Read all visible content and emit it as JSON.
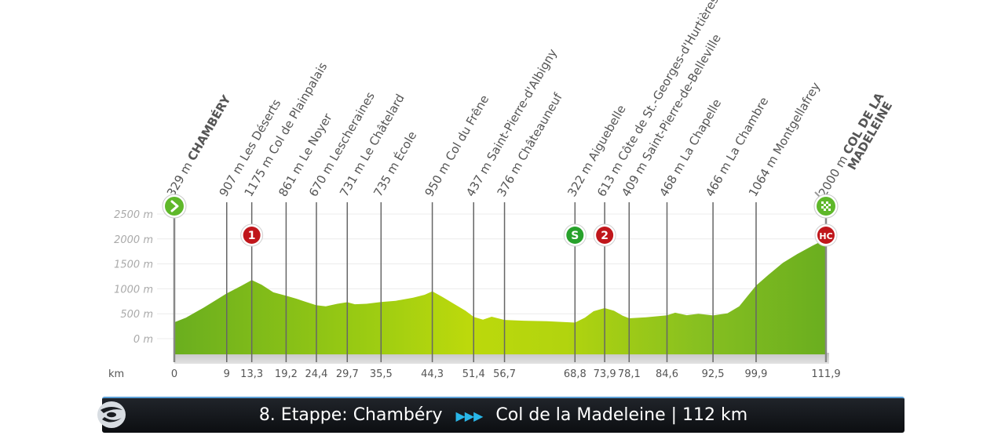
{
  "stage": {
    "number_label": "8. Etappe:",
    "start": "Chambéry",
    "arrows": "▶▶▶",
    "finish": "Col de la Madeleine",
    "distance": "| 112 km"
  },
  "chart_data": {
    "type": "area",
    "xlabel": "km",
    "ylabel": "",
    "xlim": [
      0,
      111.9
    ],
    "ylim": [
      0,
      2500
    ],
    "y_ticks": [
      "2500 m",
      "2000 m",
      "1500 m",
      "1000 m",
      "500 m",
      "0 m"
    ],
    "x_ticks": [
      "0",
      "9",
      "13,3",
      "19,2",
      "24,4",
      "29,7",
      "35,5",
      "44,3",
      "51,4",
      "56,7",
      "68,8",
      "73,9",
      "78,1",
      "84,6",
      "92,5",
      "99,9",
      "111,9"
    ],
    "colors": {
      "fill_start": "#6aae1f",
      "fill_mid": "#b4d60c",
      "grid": "#555555"
    },
    "profile": [
      [
        0,
        329
      ],
      [
        2,
        420
      ],
      [
        5,
        620
      ],
      [
        9,
        907
      ],
      [
        11.5,
        1060
      ],
      [
        13.3,
        1175
      ],
      [
        15,
        1080
      ],
      [
        17,
        930
      ],
      [
        19.2,
        861
      ],
      [
        21,
        800
      ],
      [
        22.5,
        740
      ],
      [
        24.4,
        670
      ],
      [
        26,
        650
      ],
      [
        28,
        700
      ],
      [
        29.7,
        731
      ],
      [
        31,
        690
      ],
      [
        33,
        700
      ],
      [
        35.5,
        735
      ],
      [
        38,
        760
      ],
      [
        41,
        820
      ],
      [
        43,
        880
      ],
      [
        44.3,
        950
      ],
      [
        46,
        840
      ],
      [
        48,
        700
      ],
      [
        50,
        560
      ],
      [
        51.4,
        437
      ],
      [
        53,
        380
      ],
      [
        54.5,
        440
      ],
      [
        56.7,
        376
      ],
      [
        60,
        360
      ],
      [
        64,
        350
      ],
      [
        68.8,
        322
      ],
      [
        70.5,
        420
      ],
      [
        72,
        550
      ],
      [
        73.9,
        613
      ],
      [
        75.5,
        560
      ],
      [
        77,
        460
      ],
      [
        78.1,
        409
      ],
      [
        81,
        430
      ],
      [
        84.6,
        468
      ],
      [
        86,
        520
      ],
      [
        88,
        470
      ],
      [
        90,
        500
      ],
      [
        92.5,
        466
      ],
      [
        95,
        510
      ],
      [
        97,
        650
      ],
      [
        99.9,
        1064
      ],
      [
        102,
        1280
      ],
      [
        104.5,
        1520
      ],
      [
        107,
        1700
      ],
      [
        109.5,
        1860
      ],
      [
        111.9,
        2000
      ]
    ],
    "waypoints": [
      {
        "km": 0,
        "alt": "329 m",
        "name": "CHAMBÉRY",
        "emphasis": true
      },
      {
        "km": 9,
        "alt": "907 m",
        "name": "Les Déserts"
      },
      {
        "km": 13.3,
        "alt": "1175 m",
        "name": "Col de Plainpalais"
      },
      {
        "km": 19.2,
        "alt": "861 m",
        "name": "Le Noyer"
      },
      {
        "km": 24.4,
        "alt": "670 m",
        "name": "Lescheraines"
      },
      {
        "km": 29.7,
        "alt": "731 m",
        "name": "Le Châtelard"
      },
      {
        "km": 35.5,
        "alt": "735 m",
        "name": "École"
      },
      {
        "km": 44.3,
        "alt": "950 m",
        "name": "Col du Frêne"
      },
      {
        "km": 51.4,
        "alt": "437 m",
        "name": "Saint-Pierre-d'Albigny"
      },
      {
        "km": 56.7,
        "alt": "376 m",
        "name": "Châteauneuf"
      },
      {
        "km": 68.8,
        "alt": "322 m",
        "name": "Aiguebelle"
      },
      {
        "km": 73.9,
        "alt": "613 m",
        "name": "Côte de St.-Georges-d'Hurtières"
      },
      {
        "km": 78.1,
        "alt": "409 m",
        "name": "Saint-Pierre-de-Belleville"
      },
      {
        "km": 84.6,
        "alt": "468 m",
        "name": "La Chapelle"
      },
      {
        "km": 92.5,
        "alt": "466 m",
        "name": "La Chambre"
      },
      {
        "km": 99.9,
        "alt": "1064 m",
        "name": "Montgellafrey"
      },
      {
        "km": 111.9,
        "alt": "2000 m",
        "name": "COL DE LA|MADELEINE",
        "emphasis": true
      }
    ],
    "badges": [
      {
        "km": 13.3,
        "label": "1",
        "color": "#c0161b"
      },
      {
        "km": 68.8,
        "label": "S",
        "color": "#27a12b"
      },
      {
        "km": 73.9,
        "label": "2",
        "color": "#c0161b"
      },
      {
        "km": 111.9,
        "label": "HC",
        "color": "#c0161b"
      }
    ],
    "start_marker": {
      "km": 0,
      "icon": "start-arrow-icon",
      "color": "#5fb82a"
    },
    "finish_marker": {
      "km": 111.9,
      "icon": "finish-flag-icon",
      "color": "#5fb82a"
    }
  }
}
